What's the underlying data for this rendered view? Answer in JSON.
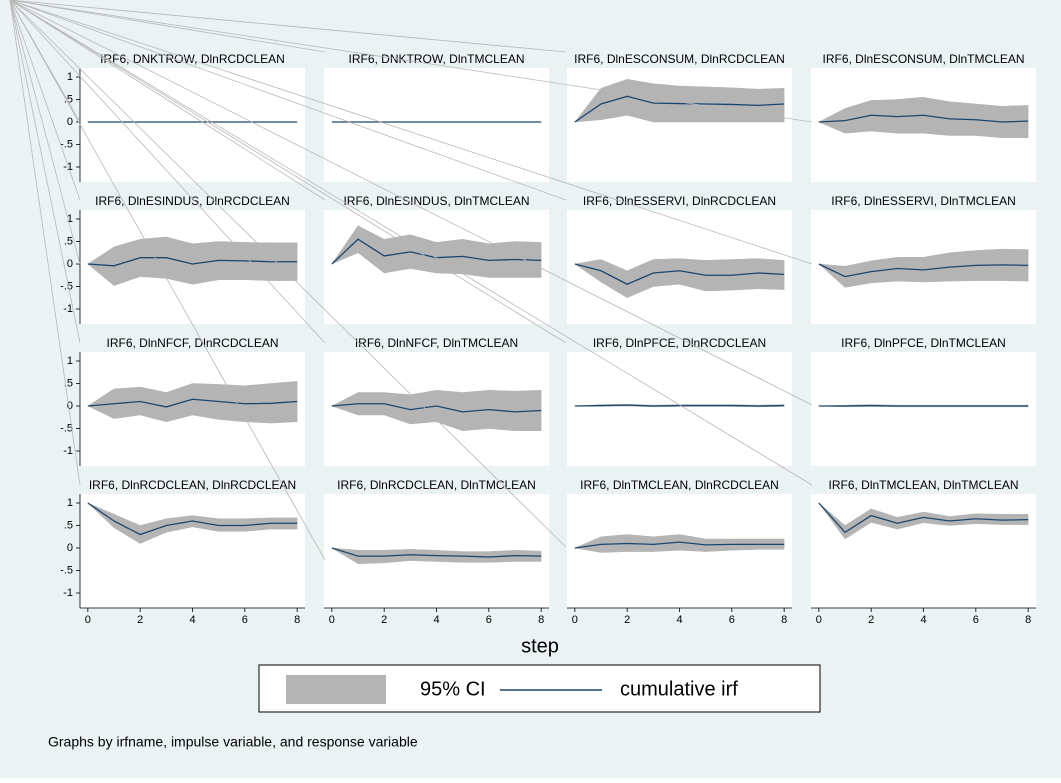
{
  "chart_data": [
    {
      "type": "line",
      "title": "IRF6, DNKTROW, DlnRCDCLEAN",
      "x": [
        0,
        1,
        2,
        3,
        4,
        5,
        6,
        7,
        8
      ],
      "values": [
        0,
        0,
        0,
        0,
        0,
        0,
        0,
        0,
        0
      ],
      "lower": [
        0,
        0,
        0,
        0,
        0,
        0,
        0,
        0,
        0
      ],
      "upper": [
        0,
        0,
        0,
        0,
        0,
        0,
        0,
        0,
        0
      ]
    },
    {
      "type": "line",
      "title": "IRF6, DNKTROW, DlnTMCLEAN",
      "x": [
        0,
        1,
        2,
        3,
        4,
        5,
        6,
        7,
        8
      ],
      "values": [
        0,
        0,
        0,
        0,
        0,
        0,
        0,
        0,
        0
      ],
      "lower": [
        0,
        0,
        0,
        0,
        0,
        0,
        0,
        0,
        0
      ],
      "upper": [
        0,
        0,
        0,
        0,
        0,
        0,
        0,
        0,
        0
      ]
    },
    {
      "type": "line",
      "title": "IRF6, DlnESCONSUM, DlnRCDCLEAN",
      "x": [
        0,
        1,
        2,
        3,
        4,
        5,
        6,
        7,
        8
      ],
      "values": [
        0,
        0.4,
        0.57,
        0.42,
        0.41,
        0.4,
        0.39,
        0.37,
        0.4
      ],
      "lower": [
        0,
        0.05,
        0.15,
        0,
        0,
        0,
        0,
        0,
        0
      ],
      "upper": [
        0,
        0.75,
        0.95,
        0.85,
        0.8,
        0.78,
        0.76,
        0.73,
        0.75
      ]
    },
    {
      "type": "line",
      "title": "IRF6, DlnESCONSUM, DlnTMCLEAN",
      "x": [
        0,
        1,
        2,
        3,
        4,
        5,
        6,
        7,
        8
      ],
      "values": [
        0,
        0.03,
        0.15,
        0.12,
        0.15,
        0.07,
        0.05,
        0,
        0.02
      ],
      "lower": [
        0,
        -0.25,
        -0.2,
        -0.25,
        -0.25,
        -0.3,
        -0.3,
        -0.35,
        -0.35
      ],
      "upper": [
        0,
        0.3,
        0.48,
        0.5,
        0.55,
        0.45,
        0.4,
        0.35,
        0.37
      ]
    },
    {
      "type": "line",
      "title": "IRF6, DlnESINDUS, DlnRCDCLEAN",
      "x": [
        0,
        1,
        2,
        3,
        4,
        5,
        6,
        7,
        8
      ],
      "values": [
        0,
        -0.04,
        0.14,
        0.14,
        0,
        0.08,
        0.07,
        0.05,
        0.05
      ],
      "lower": [
        0,
        -0.48,
        -0.28,
        -0.32,
        -0.45,
        -0.35,
        -0.35,
        -0.37,
        -0.37
      ],
      "upper": [
        0,
        0.38,
        0.55,
        0.6,
        0.45,
        0.5,
        0.48,
        0.47,
        0.47
      ]
    },
    {
      "type": "line",
      "title": "IRF6, DlnESINDUS, DlnTMCLEAN",
      "x": [
        0,
        1,
        2,
        3,
        4,
        5,
        6,
        7,
        8
      ],
      "values": [
        0,
        0.55,
        0.18,
        0.27,
        0.14,
        0.17,
        0.08,
        0.1,
        0.08
      ],
      "lower": [
        0,
        0.25,
        -0.2,
        -0.1,
        -0.2,
        -0.22,
        -0.3,
        -0.3,
        -0.3
      ],
      "upper": [
        0,
        0.85,
        0.55,
        0.65,
        0.48,
        0.55,
        0.45,
        0.5,
        0.48
      ]
    },
    {
      "type": "line",
      "title": "IRF6, DlnESSERVI, DlnRCDCLEAN",
      "x": [
        0,
        1,
        2,
        3,
        4,
        5,
        6,
        7,
        8
      ],
      "values": [
        0,
        -0.15,
        -0.45,
        -0.2,
        -0.15,
        -0.25,
        -0.25,
        -0.2,
        -0.23
      ],
      "lower": [
        0,
        -0.4,
        -0.75,
        -0.5,
        -0.45,
        -0.6,
        -0.58,
        -0.55,
        -0.57
      ],
      "upper": [
        0,
        0.1,
        -0.15,
        0.1,
        0.12,
        0.08,
        0.1,
        0.12,
        0.08
      ]
    },
    {
      "type": "line",
      "title": "IRF6, DlnESSERVI, DlnTMCLEAN",
      "x": [
        0,
        1,
        2,
        3,
        4,
        5,
        6,
        7,
        8
      ],
      "values": [
        0,
        -0.28,
        -0.17,
        -0.1,
        -0.13,
        -0.07,
        -0.03,
        -0.02,
        -0.03
      ],
      "lower": [
        0,
        -0.52,
        -0.42,
        -0.38,
        -0.4,
        -0.38,
        -0.37,
        -0.37,
        -0.38
      ],
      "upper": [
        0,
        -0.05,
        0.07,
        0.15,
        0.15,
        0.25,
        0.3,
        0.33,
        0.32
      ]
    },
    {
      "type": "line",
      "title": "IRF6, DlnNFCF, DlnRCDCLEAN",
      "x": [
        0,
        1,
        2,
        3,
        4,
        5,
        6,
        7,
        8
      ],
      "values": [
        0,
        0.05,
        0.1,
        -0.02,
        0.15,
        0.1,
        0.05,
        0.06,
        0.1
      ],
      "lower": [
        0,
        -0.28,
        -0.2,
        -0.35,
        -0.2,
        -0.3,
        -0.35,
        -0.38,
        -0.35
      ],
      "upper": [
        0,
        0.38,
        0.42,
        0.3,
        0.5,
        0.48,
        0.45,
        0.5,
        0.55
      ]
    },
    {
      "type": "line",
      "title": "IRF6, DlnNFCF, DlnTMCLEAN",
      "x": [
        0,
        1,
        2,
        3,
        4,
        5,
        6,
        7,
        8
      ],
      "values": [
        0,
        0.05,
        0.05,
        -0.08,
        0,
        -0.13,
        -0.08,
        -0.13,
        -0.1
      ],
      "lower": [
        0,
        -0.2,
        -0.2,
        -0.4,
        -0.35,
        -0.55,
        -0.5,
        -0.55,
        -0.55
      ],
      "upper": [
        0,
        0.3,
        0.3,
        0.25,
        0.35,
        0.3,
        0.35,
        0.33,
        0.35
      ]
    },
    {
      "type": "line",
      "title": "IRF6, DlnPFCE, DlnRCDCLEAN",
      "x": [
        0,
        1,
        2,
        3,
        4,
        5,
        6,
        7,
        8
      ],
      "values": [
        0,
        0.01,
        0.02,
        0,
        0.01,
        0.01,
        0.01,
        0,
        0.01
      ],
      "lower": [
        0,
        -0.01,
        0,
        -0.02,
        -0.01,
        -0.01,
        -0.01,
        -0.02,
        -0.01
      ],
      "upper": [
        0,
        0.03,
        0.04,
        0.02,
        0.03,
        0.03,
        0.03,
        0.02,
        0.03
      ]
    },
    {
      "type": "line",
      "title": "IRF6, DlnPFCE, DlnTMCLEAN",
      "x": [
        0,
        1,
        2,
        3,
        4,
        5,
        6,
        7,
        8
      ],
      "values": [
        0,
        0,
        0.01,
        0,
        0,
        0,
        0,
        0,
        0
      ],
      "lower": [
        0,
        -0.02,
        -0.01,
        -0.02,
        -0.02,
        -0.02,
        -0.02,
        -0.02,
        -0.02
      ],
      "upper": [
        0,
        0.02,
        0.03,
        0.02,
        0.02,
        0.02,
        0.02,
        0.02,
        0.02
      ]
    },
    {
      "type": "line",
      "title": "IRF6, DlnRCDCLEAN, DlnRCDCLEAN",
      "x": [
        0,
        1,
        2,
        3,
        4,
        5,
        6,
        7,
        8
      ],
      "values": [
        1,
        0.6,
        0.3,
        0.5,
        0.6,
        0.5,
        0.5,
        0.55,
        0.55
      ],
      "lower": [
        1,
        0.45,
        0.1,
        0.35,
        0.47,
        0.37,
        0.37,
        0.42,
        0.42
      ],
      "upper": [
        1,
        0.75,
        0.5,
        0.65,
        0.72,
        0.65,
        0.65,
        0.67,
        0.67
      ]
    },
    {
      "type": "line",
      "title": "IRF6, DlnRCDCLEAN, DlnTMCLEAN",
      "x": [
        0,
        1,
        2,
        3,
        4,
        5,
        6,
        7,
        8
      ],
      "values": [
        0,
        -0.18,
        -0.18,
        -0.15,
        -0.17,
        -0.18,
        -0.2,
        -0.17,
        -0.18
      ],
      "lower": [
        0,
        -0.35,
        -0.33,
        -0.28,
        -0.3,
        -0.32,
        -0.32,
        -0.3,
        -0.3
      ],
      "upper": [
        0,
        -0.05,
        -0.05,
        -0.03,
        -0.05,
        -0.08,
        -0.08,
        -0.05,
        -0.07
      ]
    },
    {
      "type": "line",
      "title": "IRF6, DlnTMCLEAN, DlnRCDCLEAN",
      "x": [
        0,
        1,
        2,
        3,
        4,
        5,
        6,
        7,
        8
      ],
      "values": [
        0,
        0.08,
        0.1,
        0.08,
        0.13,
        0.07,
        0.08,
        0.08,
        0.08
      ],
      "lower": [
        0,
        -0.1,
        -0.08,
        -0.08,
        -0.05,
        -0.08,
        -0.05,
        -0.03,
        -0.03
      ],
      "upper": [
        0,
        0.25,
        0.3,
        0.25,
        0.3,
        0.2,
        0.2,
        0.2,
        0.2
      ]
    },
    {
      "type": "line",
      "title": "IRF6, DlnTMCLEAN, DlnTMCLEAN",
      "x": [
        0,
        1,
        2,
        3,
        4,
        5,
        6,
        7,
        8
      ],
      "values": [
        1,
        0.35,
        0.72,
        0.55,
        0.68,
        0.6,
        0.65,
        0.62,
        0.63
      ],
      "lower": [
        1,
        0.2,
        0.57,
        0.42,
        0.56,
        0.5,
        0.54,
        0.52,
        0.52
      ],
      "upper": [
        1,
        0.5,
        0.87,
        0.68,
        0.8,
        0.7,
        0.76,
        0.75,
        0.75
      ]
    }
  ],
  "axes": {
    "xlim": [
      -0.3,
      8.3
    ],
    "xticks": [
      0,
      2,
      4,
      6,
      8
    ],
    "ylim": [
      -1.2,
      1.2
    ],
    "yticks": [
      -1,
      {
        "value": -0.5,
        "label": "-.5"
      },
      0,
      {
        "value": 0.5,
        "label": ".5"
      },
      1
    ]
  },
  "xlabel": "step",
  "legend": [
    {
      "name": "95% CI",
      "color": "#b4b4b4"
    },
    {
      "name": "cumulative irf",
      "color": "#1a476f"
    }
  ],
  "note": "Graphs by irfname, impulse variable, and response variable"
}
